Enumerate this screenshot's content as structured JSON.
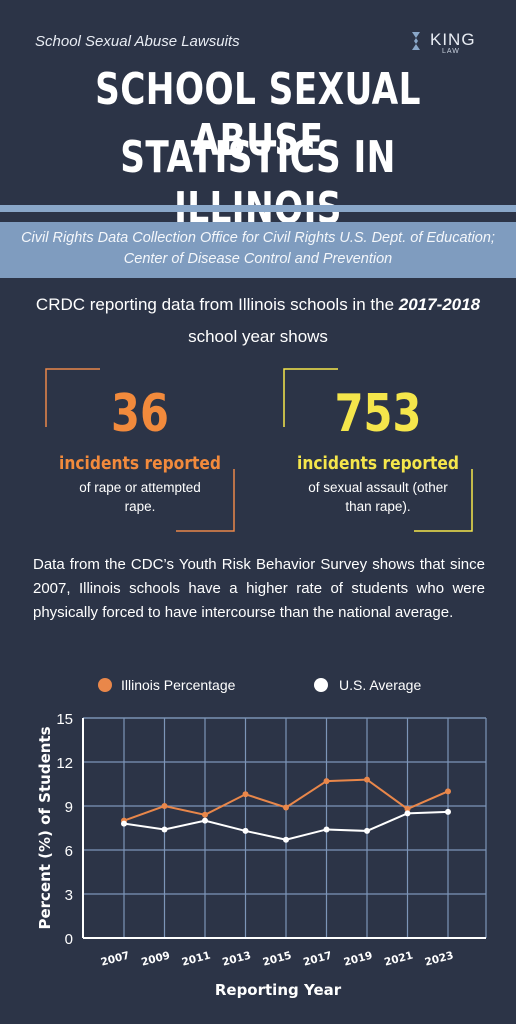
{
  "header": {
    "eyebrow": "School Sexual Abuse Lawsuits",
    "title_line1": "SCHOOL SEXUAL ABUSE",
    "title_line2": "STATISTICS IN ILLINOIS",
    "logo_word": "KING",
    "logo_sub": "LAW"
  },
  "source": {
    "text": "Civil Rights Data Collection Office for Civil Rights U.S. Dept. of Education; Center of Disease Control and Prevention"
  },
  "intro": {
    "before": "CRDC reporting data from Illinois schools in the ",
    "year": "2017-2018",
    "after": " school year shows"
  },
  "stats": [
    {
      "number": "36",
      "label": "incidents reported",
      "description": "of rape or attempted rape.",
      "color": "#f28a3c"
    },
    {
      "number": "753",
      "label": "incidents reported",
      "description": "of sexual assault (other than rape).",
      "color": "#f5e64b"
    }
  ],
  "paragraph": "Data from the CDC’s Youth Risk Behavior Survey shows that since 2007, Illinois schools have a higher rate of students who were physically forced to have intercourse than the national average.",
  "colors": {
    "background": "#2c3447",
    "accent_band": "#7f9cbf",
    "illinois": "#e9874a",
    "us": "#ffffff",
    "grid": "#7d95b8"
  },
  "chart_data": {
    "type": "line",
    "xlabel": "Reporting Year",
    "ylabel": "Percent (%) of Students",
    "ylim": [
      0,
      15
    ],
    "yticks": [
      "0",
      "3",
      "6",
      "9",
      "12",
      "15"
    ],
    "categories": [
      "2007",
      "2009",
      "2011",
      "2013",
      "2015",
      "2017",
      "2019",
      "2021",
      "2023"
    ],
    "series": [
      {
        "name": "Illinois Percentage",
        "values": [
          8.0,
          9.0,
          8.4,
          9.8,
          8.9,
          10.7,
          10.8,
          8.8,
          10.0
        ]
      },
      {
        "name": "U.S. Average",
        "values": [
          7.8,
          7.4,
          8.0,
          7.3,
          6.7,
          7.4,
          7.3,
          8.5,
          8.6
        ]
      }
    ],
    "grid": true,
    "legend": "top"
  }
}
